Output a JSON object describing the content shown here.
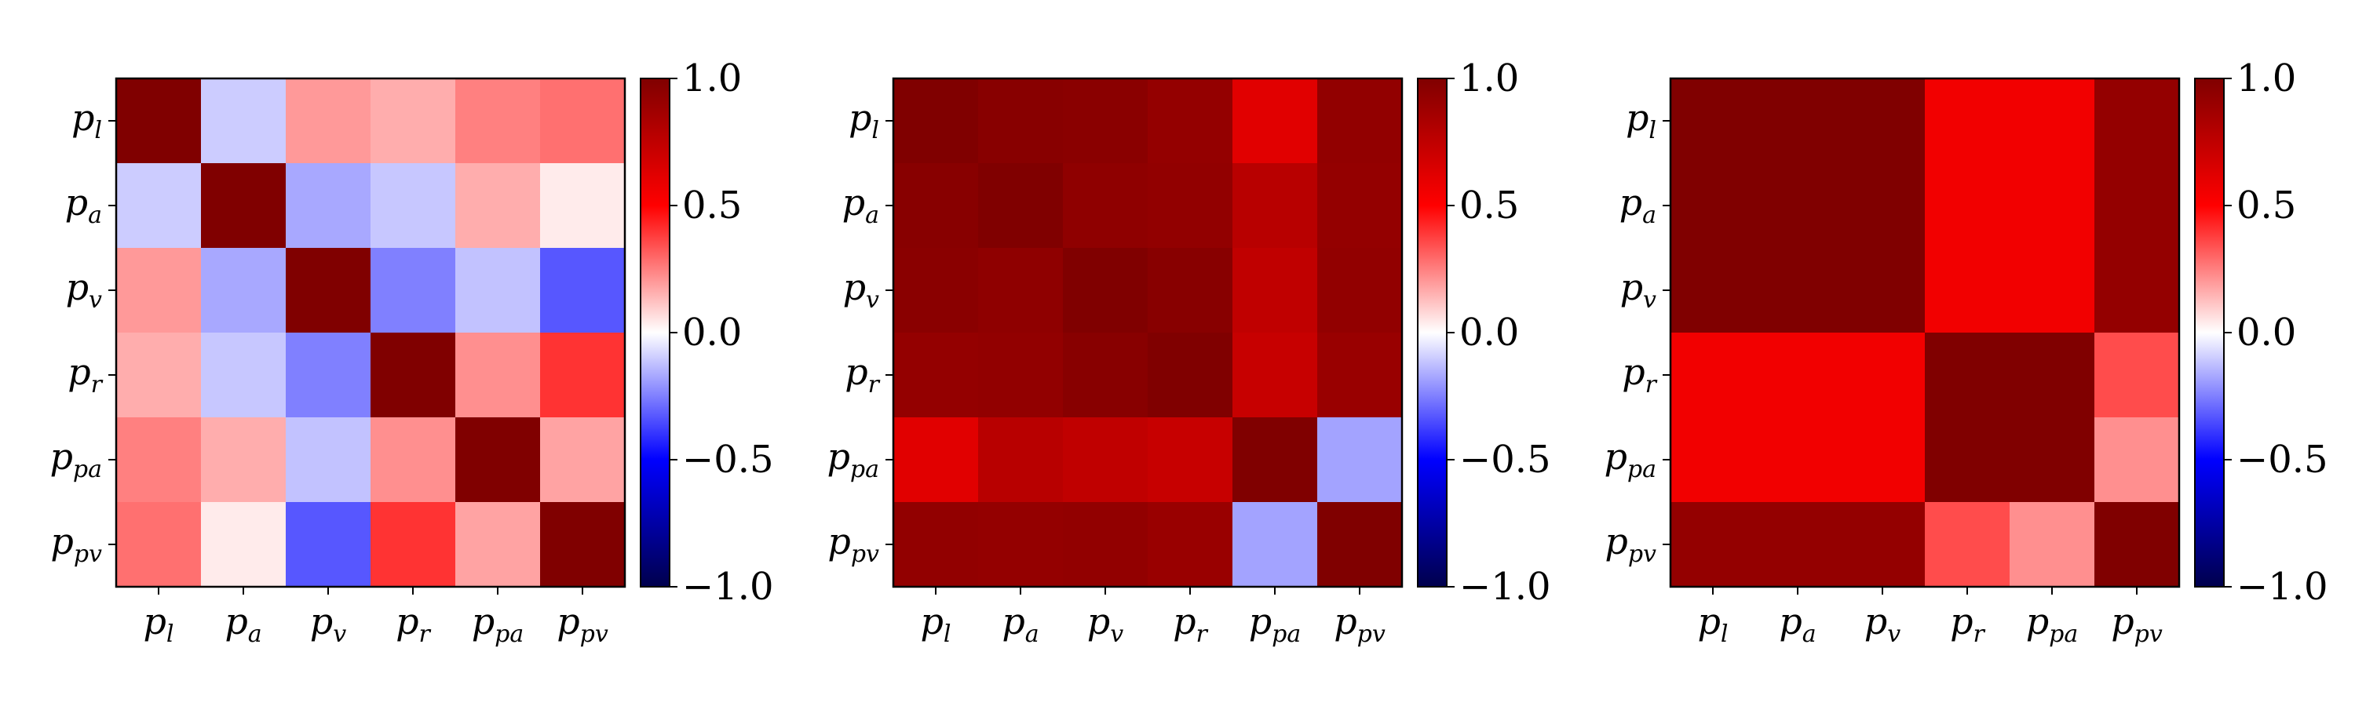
{
  "chart_data": [
    {
      "type": "heatmap",
      "title": "",
      "xlabel": "",
      "ylabel": "",
      "x": [
        "p_l",
        "p_a",
        "p_v",
        "p_r",
        "p_pa",
        "p_pv"
      ],
      "y": [
        "p_l",
        "p_a",
        "p_v",
        "p_r",
        "p_pa",
        "p_pv"
      ],
      "values": [
        [
          1.0,
          -0.1,
          0.2,
          0.16,
          0.25,
          0.28
        ],
        [
          -0.1,
          1.0,
          -0.17,
          -0.11,
          0.16,
          0.04
        ],
        [
          0.2,
          -0.17,
          1.0,
          -0.25,
          -0.12,
          -0.33
        ],
        [
          0.16,
          -0.11,
          -0.25,
          1.0,
          0.22,
          0.4
        ],
        [
          0.25,
          0.16,
          -0.12,
          0.22,
          1.0,
          0.18
        ],
        [
          0.28,
          0.04,
          -0.33,
          0.4,
          0.18,
          1.0
        ]
      ],
      "colormap": "seismic",
      "colorbar": {
        "range": [
          -1.0,
          1.0
        ],
        "ticks": [
          "1.0",
          "0.5",
          "0.0",
          "−0.5",
          "−1.0"
        ]
      }
    },
    {
      "type": "heatmap",
      "title": "",
      "xlabel": "",
      "ylabel": "",
      "x": [
        "p_l",
        "p_a",
        "p_v",
        "p_r",
        "p_pa",
        "p_pv"
      ],
      "y": [
        "p_l",
        "p_a",
        "p_v",
        "p_r",
        "p_pa",
        "p_pv"
      ],
      "values": [
        [
          1.0,
          0.97,
          0.96,
          0.92,
          0.62,
          0.93
        ],
        [
          0.97,
          1.0,
          0.94,
          0.93,
          0.78,
          0.92
        ],
        [
          0.96,
          0.94,
          1.0,
          0.97,
          0.75,
          0.93
        ],
        [
          0.92,
          0.93,
          0.97,
          1.0,
          0.72,
          0.9
        ],
        [
          0.62,
          0.78,
          0.75,
          0.72,
          1.0,
          -0.18
        ],
        [
          0.93,
          0.92,
          0.93,
          0.9,
          -0.18,
          1.0
        ]
      ],
      "colormap": "seismic",
      "colorbar": {
        "range": [
          -1.0,
          1.0
        ],
        "ticks": [
          "1.0",
          "0.5",
          "0.0",
          "−0.5",
          "−1.0"
        ]
      }
    },
    {
      "type": "heatmap",
      "title": "",
      "xlabel": "",
      "ylabel": "",
      "x": [
        "p_l",
        "p_a",
        "p_v",
        "p_r",
        "p_pa",
        "p_pv"
      ],
      "y": [
        "p_l",
        "p_a",
        "p_v",
        "p_r",
        "p_pa",
        "p_pv"
      ],
      "values": [
        [
          1.0,
          1.0,
          1.0,
          0.55,
          0.55,
          0.92
        ],
        [
          1.0,
          1.0,
          1.0,
          0.55,
          0.55,
          0.92
        ],
        [
          1.0,
          1.0,
          1.0,
          0.55,
          0.55,
          0.92
        ],
        [
          0.55,
          0.55,
          0.55,
          1.0,
          1.0,
          0.35
        ],
        [
          0.55,
          0.55,
          0.55,
          1.0,
          1.0,
          0.22
        ],
        [
          0.92,
          0.92,
          0.92,
          0.35,
          0.22,
          1.0
        ]
      ],
      "colormap": "seismic",
      "colorbar": {
        "range": [
          -1.0,
          1.0
        ],
        "ticks": [
          "1.0",
          "0.5",
          "0.0",
          "−0.5",
          "−1.0"
        ]
      }
    }
  ],
  "labels": {
    "p_l": {
      "base": "p",
      "sub": "l"
    },
    "p_a": {
      "base": "p",
      "sub": "a"
    },
    "p_v": {
      "base": "p",
      "sub": "v"
    },
    "p_r": {
      "base": "p",
      "sub": "r"
    },
    "p_pa": {
      "base": "p",
      "sub": "pa"
    },
    "p_pv": {
      "base": "p",
      "sub": "pv"
    }
  }
}
